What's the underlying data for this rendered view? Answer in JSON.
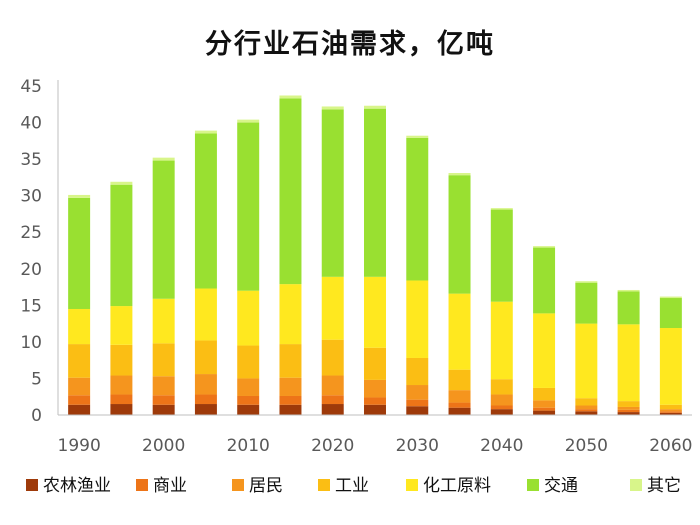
{
  "chart_data": {
    "type": "bar",
    "stacked": true,
    "title": "分行业石油需求，亿吨",
    "xlabel": "",
    "ylabel": "",
    "ylim": [
      0,
      45
    ],
    "yticks": [
      0,
      5,
      10,
      15,
      20,
      25,
      30,
      35,
      40,
      45
    ],
    "categories": [
      "1990",
      "1995",
      "2000",
      "2005",
      "2010",
      "2015",
      "2020",
      "2025",
      "2030",
      "2035",
      "2040",
      "2045",
      "2050",
      "2055",
      "2060"
    ],
    "xtick_labels": [
      "1990",
      "",
      "2000",
      "",
      "2010",
      "",
      "2020",
      "",
      "2030",
      "",
      "2040",
      "",
      "2050",
      "",
      "2060"
    ],
    "grid": false,
    "legend_position": "bottom",
    "series": [
      {
        "name": "农林渔业",
        "color": "#9E3A0A",
        "values": [
          1.4,
          1.5,
          1.4,
          1.5,
          1.4,
          1.4,
          1.5,
          1.4,
          1.2,
          1.0,
          0.8,
          0.6,
          0.5,
          0.4,
          0.3
        ]
      },
      {
        "name": "商业",
        "color": "#ED7418",
        "values": [
          1.3,
          1.3,
          1.3,
          1.3,
          1.2,
          1.2,
          1.2,
          1.0,
          0.9,
          0.7,
          0.5,
          0.4,
          0.3,
          0.3,
          0.2
        ]
      },
      {
        "name": "居民",
        "color": "#F5951E",
        "values": [
          2.4,
          2.6,
          2.6,
          2.8,
          2.4,
          2.5,
          2.7,
          2.4,
          2.0,
          1.7,
          1.5,
          1.0,
          0.5,
          0.4,
          0.3
        ]
      },
      {
        "name": "工业",
        "color": "#FBBE14",
        "values": [
          4.6,
          4.2,
          4.5,
          4.6,
          4.5,
          4.6,
          4.9,
          4.4,
          3.7,
          2.8,
          2.1,
          1.7,
          1.0,
          0.8,
          0.6
        ]
      },
      {
        "name": "化工原料",
        "color": "#FFE81F",
        "values": [
          4.8,
          5.3,
          6.1,
          7.1,
          7.5,
          8.2,
          8.6,
          9.7,
          10.6,
          10.4,
          10.6,
          10.2,
          10.2,
          10.5,
          10.5
        ]
      },
      {
        "name": "交通",
        "color": "#99E031",
        "values": [
          15.2,
          16.6,
          18.9,
          21.2,
          23.0,
          25.4,
          22.9,
          23.0,
          19.5,
          16.2,
          12.6,
          9.0,
          5.6,
          4.5,
          4.1
        ]
      },
      {
        "name": "其它",
        "color": "#D8F58A",
        "values": [
          0.4,
          0.4,
          0.4,
          0.4,
          0.4,
          0.4,
          0.4,
          0.4,
          0.3,
          0.3,
          0.2,
          0.2,
          0.2,
          0.2,
          0.2
        ]
      }
    ]
  }
}
